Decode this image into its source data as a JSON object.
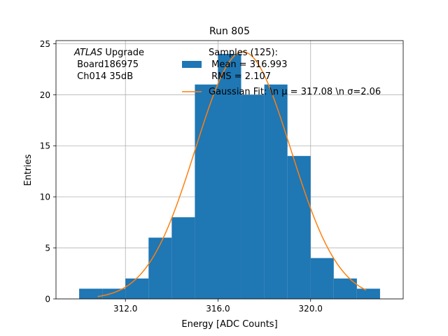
{
  "chart_data": {
    "type": "bar",
    "title": "Run 805",
    "xlabel": "Energy [ADC Counts]",
    "ylabel": "Entries",
    "xlim": [
      309.0,
      324.0
    ],
    "ylim": [
      0,
      25.3
    ],
    "grid": true,
    "xticks": [
      312.0,
      316.0,
      320.0
    ],
    "xtick_labels": [
      "312.0",
      "316.0",
      "320.0"
    ],
    "yticks": [
      0,
      5,
      10,
      15,
      20,
      25
    ],
    "ytick_labels": [
      "0",
      "5",
      "10",
      "15",
      "20",
      "25"
    ],
    "bins": [
      {
        "x0": 310,
        "x1": 311,
        "count": 1
      },
      {
        "x0": 311,
        "x1": 312,
        "count": 1
      },
      {
        "x0": 312,
        "x1": 313,
        "count": 2
      },
      {
        "x0": 313,
        "x1": 314,
        "count": 6
      },
      {
        "x0": 314,
        "x1": 315,
        "count": 8
      },
      {
        "x0": 315,
        "x1": 316,
        "count": 21
      },
      {
        "x0": 316,
        "x1": 317,
        "count": 24
      },
      {
        "x0": 317,
        "x1": 318,
        "count": 20
      },
      {
        "x0": 318,
        "x1": 319,
        "count": 21
      },
      {
        "x0": 319,
        "x1": 320,
        "count": 14
      },
      {
        "x0": 320,
        "x1": 321,
        "count": 4
      },
      {
        "x0": 321,
        "x1": 322,
        "count": 2
      },
      {
        "x0": 322,
        "x1": 323,
        "count": 1
      }
    ],
    "fit": {
      "mu": 317.08,
      "sigma": 2.06,
      "amplitude": 24.2,
      "x_range": [
        310.8,
        322.4
      ]
    },
    "colors": {
      "histogram": "#1f77b4",
      "fit": "#ff7f0e"
    },
    "legend": {
      "placement": "top-right",
      "histogram_label": [
        "Samples (125):",
        " Mean = 316.993",
        " RMS = 2.107"
      ],
      "fit_label": "Gaussian Fit: \\n μ = 317.08 \\n σ=2.06"
    },
    "annotation": {
      "italic": "ATLAS",
      "text": " Upgrade",
      "line2": " Board186975",
      "line3": " Ch014 35dB"
    }
  }
}
